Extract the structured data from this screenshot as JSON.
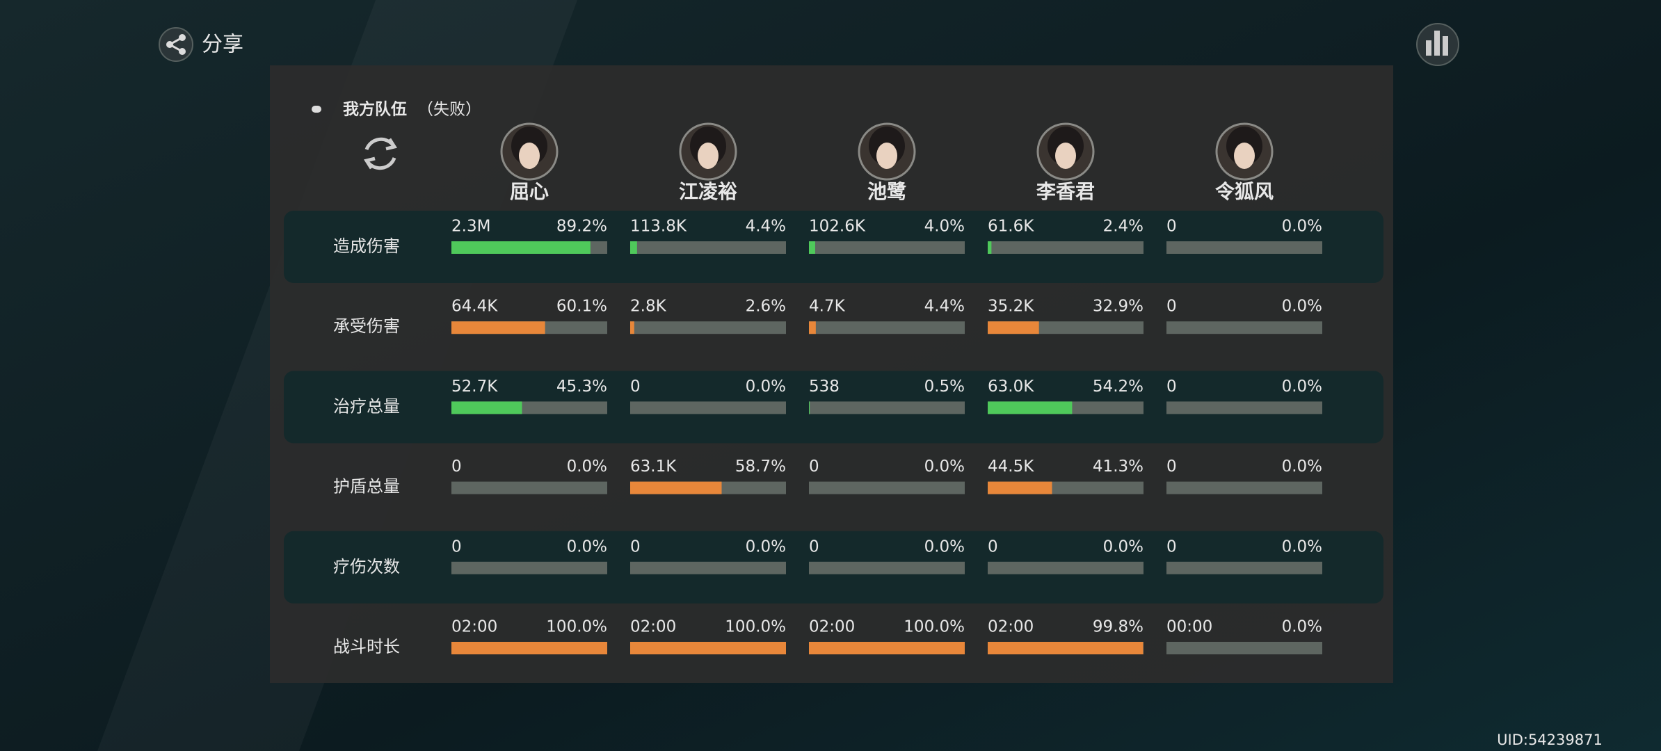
{
  "share": "分享",
  "team": {
    "title": "我方队伍",
    "status": "（失败）"
  },
  "characters": [
    "屈心",
    "江凌裕",
    "池鹭",
    "李香君",
    "令狐风"
  ],
  "rows": [
    {
      "label": "造成伤害",
      "color": "#4fc95b",
      "cells": [
        {
          "amount": "2.3M",
          "percent": 89.2,
          "percent_label": "89.2%"
        },
        {
          "amount": "113.8K",
          "percent": 4.4,
          "percent_label": "4.4%"
        },
        {
          "amount": "102.6K",
          "percent": 4.0,
          "percent_label": "4.0%"
        },
        {
          "amount": "61.6K",
          "percent": 2.4,
          "percent_label": "2.4%"
        },
        {
          "amount": "0",
          "percent": 0.0,
          "percent_label": "0.0%"
        }
      ]
    },
    {
      "label": "承受伤害",
      "color": "#e8873a",
      "cells": [
        {
          "amount": "64.4K",
          "percent": 60.1,
          "percent_label": "60.1%"
        },
        {
          "amount": "2.8K",
          "percent": 2.6,
          "percent_label": "2.6%"
        },
        {
          "amount": "4.7K",
          "percent": 4.4,
          "percent_label": "4.4%"
        },
        {
          "amount": "35.2K",
          "percent": 32.9,
          "percent_label": "32.9%"
        },
        {
          "amount": "0",
          "percent": 0.0,
          "percent_label": "0.0%"
        }
      ]
    },
    {
      "label": "治疗总量",
      "color": "#4fc95b",
      "cells": [
        {
          "amount": "52.7K",
          "percent": 45.3,
          "percent_label": "45.3%"
        },
        {
          "amount": "0",
          "percent": 0.0,
          "percent_label": "0.0%"
        },
        {
          "amount": "538",
          "percent": 0.5,
          "percent_label": "0.5%"
        },
        {
          "amount": "63.0K",
          "percent": 54.2,
          "percent_label": "54.2%"
        },
        {
          "amount": "0",
          "percent": 0.0,
          "percent_label": "0.0%"
        }
      ]
    },
    {
      "label": "护盾总量",
      "color": "#e8873a",
      "cells": [
        {
          "amount": "0",
          "percent": 0.0,
          "percent_label": "0.0%"
        },
        {
          "amount": "63.1K",
          "percent": 58.7,
          "percent_label": "58.7%"
        },
        {
          "amount": "0",
          "percent": 0.0,
          "percent_label": "0.0%"
        },
        {
          "amount": "44.5K",
          "percent": 41.3,
          "percent_label": "41.3%"
        },
        {
          "amount": "0",
          "percent": 0.0,
          "percent_label": "0.0%"
        }
      ]
    },
    {
      "label": "疗伤次数",
      "color": "#4fc95b",
      "cells": [
        {
          "amount": "0",
          "percent": 0.0,
          "percent_label": "0.0%"
        },
        {
          "amount": "0",
          "percent": 0.0,
          "percent_label": "0.0%"
        },
        {
          "amount": "0",
          "percent": 0.0,
          "percent_label": "0.0%"
        },
        {
          "amount": "0",
          "percent": 0.0,
          "percent_label": "0.0%"
        },
        {
          "amount": "0",
          "percent": 0.0,
          "percent_label": "0.0%"
        }
      ]
    },
    {
      "label": "战斗时长",
      "color": "#e8873a",
      "cells": [
        {
          "amount": "02:00",
          "percent": 100.0,
          "percent_label": "100.0%"
        },
        {
          "amount": "02:00",
          "percent": 100.0,
          "percent_label": "100.0%"
        },
        {
          "amount": "02:00",
          "percent": 100.0,
          "percent_label": "100.0%"
        },
        {
          "amount": "02:00",
          "percent": 99.8,
          "percent_label": "99.8%"
        },
        {
          "amount": "00:00",
          "percent": 0.0,
          "percent_label": "0.0%"
        }
      ]
    }
  ],
  "uid": "UID:54239871"
}
